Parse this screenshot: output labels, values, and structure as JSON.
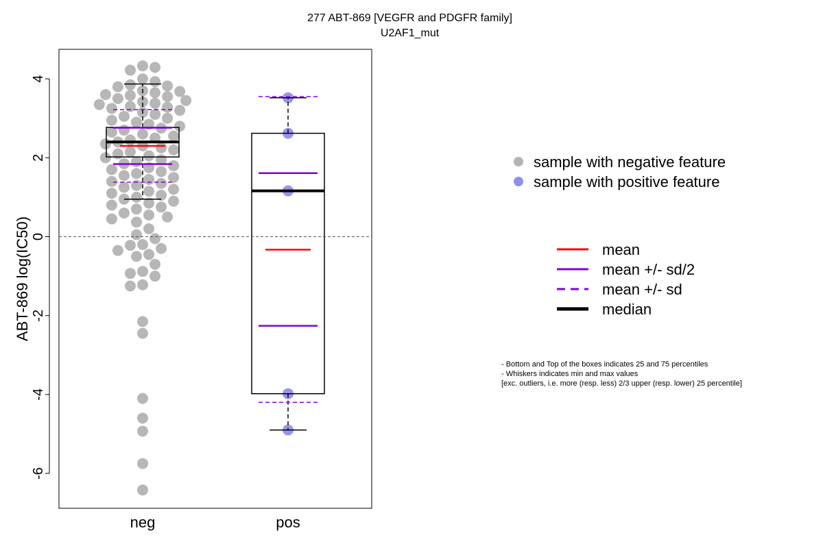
{
  "chart_data": {
    "type": "box",
    "title": "277 ABT-869 [VEGFR and PDGFR family]",
    "subtitle": "U2AF1_mut",
    "ylabel": "ABT-869 log(IC50)",
    "xlabel": "",
    "ylim": [
      -6.9,
      4.7
    ],
    "yticks": [
      -6,
      -4,
      -2,
      0,
      2,
      4
    ],
    "reference_line": 0,
    "categories": [
      "neg",
      "pos"
    ],
    "groups": [
      {
        "name": "neg",
        "q1": 2.02,
        "median": 2.4,
        "q3": 2.77,
        "whisker_low": 0.95,
        "whisker_high": 3.87,
        "mean": 2.3,
        "mean_minus_half_sd": 1.84,
        "mean_plus_half_sd": 2.76,
        "mean_minus_sd": 1.38,
        "mean_plus_sd": 3.22,
        "points": [
          4.33,
          4.29,
          4.22,
          4.0,
          3.93,
          3.85,
          3.82,
          3.8,
          3.7,
          3.68,
          3.65,
          3.6,
          3.58,
          3.55,
          3.5,
          3.45,
          3.42,
          3.38,
          3.35,
          3.3,
          3.28,
          3.25,
          3.2,
          3.15,
          3.1,
          3.05,
          3.0,
          2.95,
          2.9,
          2.85,
          2.8,
          2.75,
          2.7,
          2.65,
          2.6,
          2.55,
          2.5,
          2.45,
          2.4,
          2.35,
          2.3,
          2.25,
          2.2,
          2.15,
          2.1,
          2.05,
          2.0,
          1.95,
          1.9,
          1.85,
          1.8,
          1.75,
          1.7,
          1.65,
          1.6,
          1.55,
          1.5,
          1.45,
          1.4,
          1.35,
          1.3,
          1.25,
          1.2,
          1.15,
          1.1,
          1.05,
          1.0,
          0.95,
          0.9,
          0.85,
          0.8,
          0.75,
          0.7,
          0.6,
          0.55,
          0.5,
          0.45,
          0.37,
          0.2,
          0.05,
          -0.05,
          -0.2,
          -0.22,
          -0.3,
          -0.35,
          -0.45,
          -0.5,
          -0.7,
          -0.88,
          -0.93,
          -1.0,
          -1.22,
          -1.25,
          -2.15,
          -2.45,
          -4.1,
          -4.6,
          -4.93,
          -5.75,
          -6.42
        ],
        "color": "#b3b3b3"
      },
      {
        "name": "pos",
        "q1": -3.98,
        "median": 1.16,
        "q3": 2.62,
        "whisker_low": -4.9,
        "whisker_high": 3.52,
        "mean": -0.33,
        "mean_minus_half_sd": -2.26,
        "mean_plus_half_sd": 1.61,
        "mean_minus_sd": -4.2,
        "mean_plus_sd": 3.55,
        "points": [
          3.52,
          2.62,
          1.16,
          -3.98,
          -4.9
        ],
        "color": "#8f8fef"
      }
    ],
    "legend_points": [
      {
        "label": "sample with negative feature",
        "color": "#b3b3b3"
      },
      {
        "label": "sample with positive feature",
        "color": "#8f8fef"
      }
    ],
    "legend_lines": [
      {
        "label": "mean",
        "color": "#ff0000",
        "style": "solid",
        "weight": "normal"
      },
      {
        "label": "mean +/- sd/2",
        "color": "#8000e0",
        "style": "solid",
        "weight": "normal"
      },
      {
        "label": "mean +/- sd",
        "color": "#8000e0",
        "style": "dashed",
        "weight": "normal"
      },
      {
        "label": "median",
        "color": "#000000",
        "style": "solid",
        "weight": "bold"
      }
    ],
    "notes": [
      "- Bottom and Top of the boxes indicates 25 and 75 percentiles",
      "- Whiskers indicates min and max values",
      "[exc. outliers, i.e. more (resp. less) 2/3 upper (resp. lower) 25 percentile]"
    ],
    "colors": {
      "mean": "#ff0000",
      "sd": "#8000e0",
      "median": "#000000",
      "reference": "#555555"
    }
  }
}
